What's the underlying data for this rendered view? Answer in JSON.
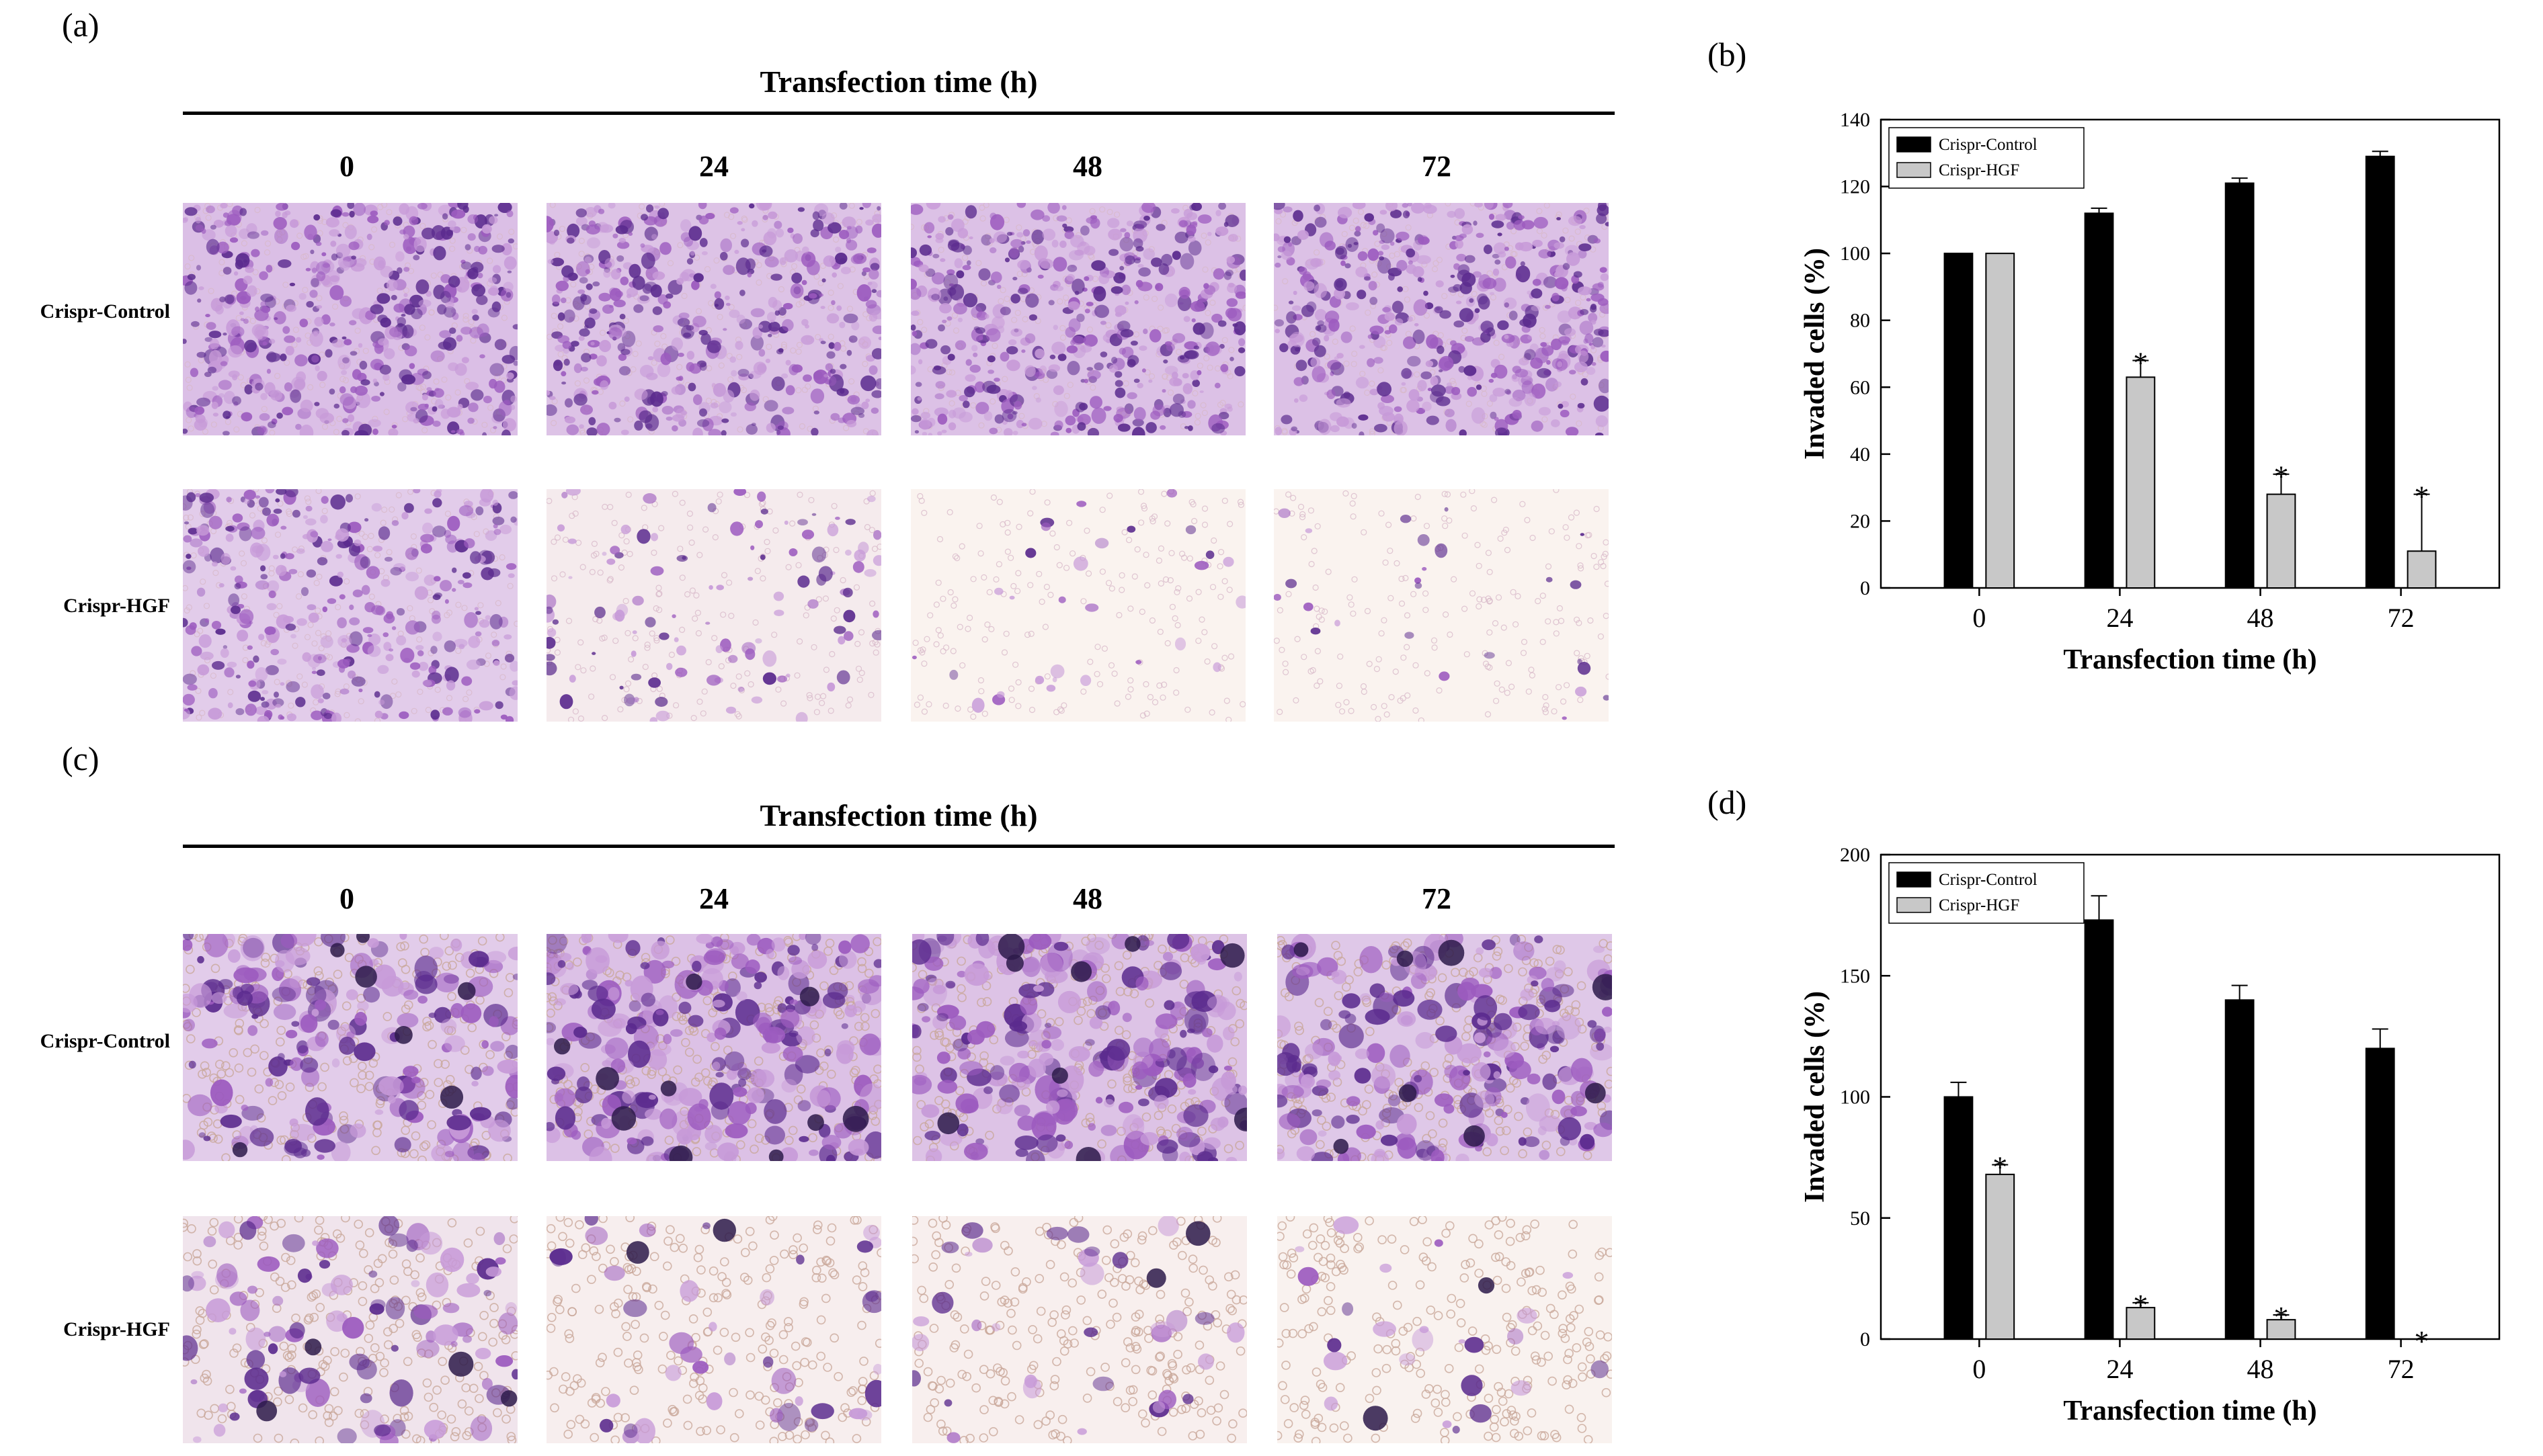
{
  "panels": {
    "a": "(a)",
    "b": "(b)",
    "c": "(c)",
    "d": "(d)"
  },
  "image_grid": {
    "title": "Transfection time (h)",
    "columns": [
      "0",
      "24",
      "48",
      "72"
    ],
    "rows": [
      "Crispr-Control",
      "Crispr-HGF"
    ],
    "stain_colors": {
      "background_light": "#f3ecf5",
      "background_pale": "#fbf5f0",
      "stain_dark": "#5b2b8e",
      "stain_mid": "#9c5bbf",
      "stain_light": "#c79ad8",
      "pore_ring": "#d8b9c9"
    },
    "grids": [
      {
        "id": "a",
        "density": [
          [
            1.0,
            0.9,
            0.95,
            0.95
          ],
          [
            0.7,
            0.2,
            0.04,
            0.03
          ]
        ],
        "style": "fine"
      },
      {
        "id": "c",
        "density": [
          [
            0.7,
            0.95,
            0.9,
            0.8
          ],
          [
            0.35,
            0.12,
            0.1,
            0.06
          ]
        ],
        "style": "coarse"
      }
    ]
  },
  "chart_data": [
    {
      "id": "b",
      "type": "bar",
      "categories": [
        "0",
        "24",
        "48",
        "72"
      ],
      "series": [
        {
          "name": "Crispr-Control",
          "color": "#000000",
          "values": [
            100,
            112,
            121,
            129
          ],
          "errors": [
            0,
            1.5,
            1.5,
            1.5
          ]
        },
        {
          "name": "Crispr-HGF",
          "color": "#c8c8c8",
          "values": [
            100,
            63,
            28,
            11
          ],
          "errors": [
            0,
            5,
            6,
            17
          ]
        }
      ],
      "significance": [
        null,
        "*",
        "*",
        "*"
      ],
      "xlabel": "Transfection time (h)",
      "ylabel": "Invaded cells (%)",
      "ylim": [
        0,
        140
      ],
      "yticks": [
        0,
        20,
        40,
        60,
        80,
        100,
        120,
        140
      ],
      "legend_position": "top-left",
      "grid": false
    },
    {
      "id": "d",
      "type": "bar",
      "categories": [
        "0",
        "24",
        "48",
        "72"
      ],
      "series": [
        {
          "name": "Crispr-Control",
          "color": "#000000",
          "values": [
            100,
            173,
            140,
            120
          ],
          "errors": [
            6,
            10,
            6,
            8
          ]
        },
        {
          "name": "Crispr-HGF",
          "color": "#c8c8c8",
          "values": [
            68,
            13,
            8,
            0
          ],
          "errors": [
            4,
            2,
            2,
            0
          ]
        }
      ],
      "significance": [
        "*",
        "*",
        "*",
        "*"
      ],
      "xlabel": "Transfection time (h)",
      "ylabel": "Invaded cells (%)",
      "ylim": [
        0,
        200
      ],
      "yticks": [
        0,
        50,
        100,
        150,
        200
      ],
      "legend_position": "top-left",
      "grid": false
    }
  ]
}
